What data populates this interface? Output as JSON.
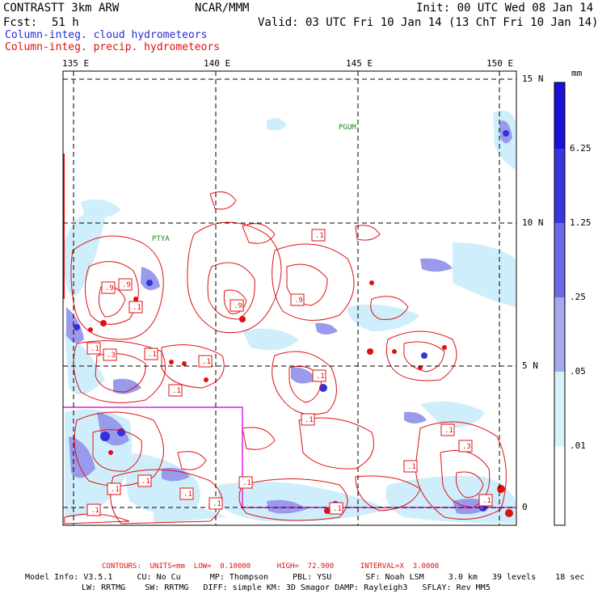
{
  "header": {
    "model_name": "CONTRASTT 3km ARW",
    "center": "NCAR/MMM",
    "init": "Init: 00 UTC Wed 08 Jan 14",
    "fcst_label": "Fcst:",
    "fcst_value": "51 h",
    "valid": "Valid: 03 UTC Fri 10 Jan 14 (13 ChT Fri 10 Jan 14)",
    "field_cloud": "Column-integ. cloud hydrometeors",
    "field_precip": "Column-integ. precip. hydrometeors"
  },
  "map": {
    "lon_labels": [
      "135 E",
      "140 E",
      "145 E",
      "150 E"
    ],
    "lat_labels": [
      "15 N",
      "10 N",
      "5 N",
      "0"
    ],
    "station_labels": [
      "PGUM",
      "PTYA"
    ],
    "contour_labels": [
      ".1",
      ".9",
      ".9",
      ".9",
      ".9",
      ".1",
      ".1",
      ".3",
      ".1",
      ".1",
      ".1",
      ".1",
      ".1",
      ".1",
      ".1",
      ".1",
      ".1",
      ".1",
      ".3",
      ".1",
      ".1",
      ".1",
      ".1",
      ".1"
    ],
    "colors": {
      "frame": "#000000",
      "contour": "#e01010",
      "domain_box": "#e020e0"
    }
  },
  "colorbar": {
    "unit": "mm",
    "labels": [
      "6.25",
      "1.25",
      ".25",
      ".05",
      ".01"
    ],
    "colors": [
      "#1a10d8",
      "#3a34e0",
      "#6a6ae6",
      "#a8a8ef",
      "#d8f2fb",
      "#ffffff"
    ]
  },
  "footer": {
    "contours": "CONTOURS:  UNITS=mm  LOW=  0.10000      HIGH=  72.900      INTERVAL=X  3.0000",
    "model_info_1": "Model Info: V3.5.1     CU: No Cu      MP: Thompson     PBL: YSU       SF: Noah LSM     3.0 km   39 levels    18 sec",
    "model_info_2": "LW: RRTMG    SW: RRTMG   DIFF: simple KM: 3D Smagor DAMP: Rayleigh3   SFLAY: Rev MM5"
  }
}
